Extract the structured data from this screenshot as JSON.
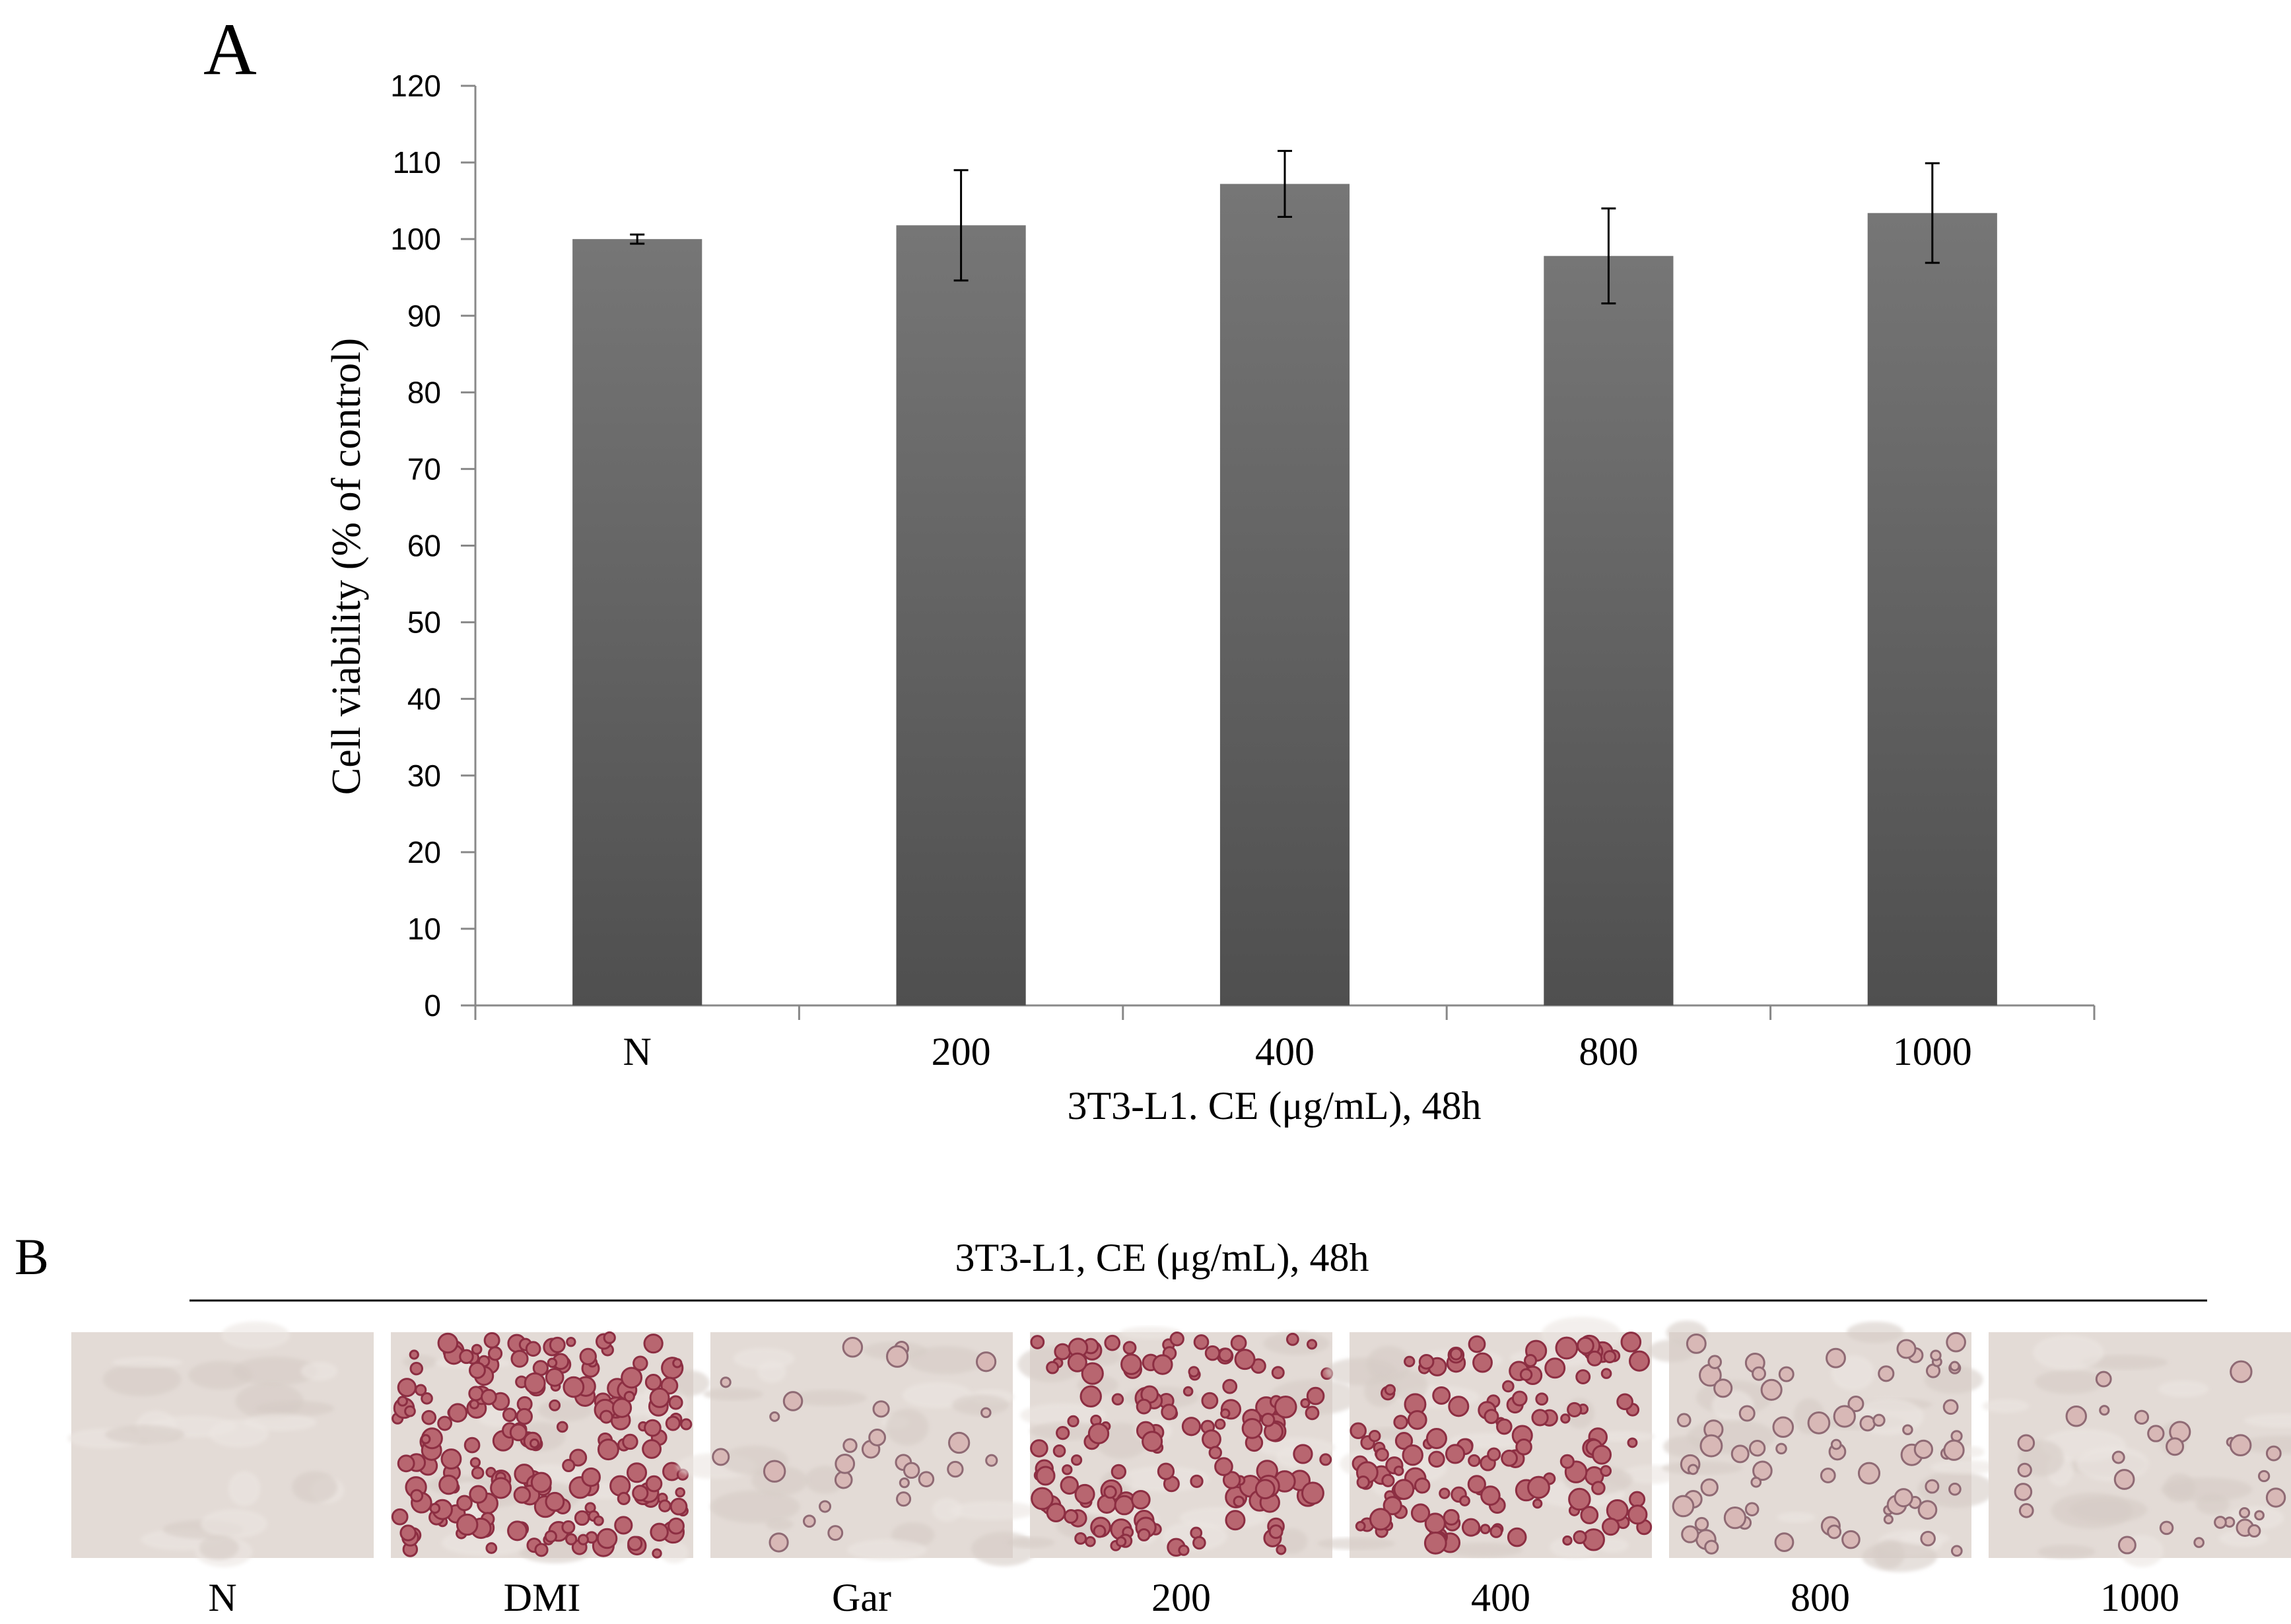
{
  "panel_a_label": "A",
  "panel_b_label": "B",
  "chart_data": {
    "type": "bar",
    "title": "",
    "xlabel": "3T3-L1. CE (μg/mL), 48h",
    "ylabel": "Cell viability (% of control)",
    "categories": [
      "N",
      "200",
      "400",
      "800",
      "1000"
    ],
    "values": [
      100,
      101.8,
      107.2,
      97.8,
      103.4
    ],
    "errors": [
      0.6,
      7.2,
      4.3,
      6.2,
      6.5
    ],
    "ylim": [
      0,
      120
    ],
    "yticks": [
      0,
      10,
      20,
      30,
      40,
      50,
      60,
      70,
      80,
      90,
      100,
      110,
      120
    ],
    "grid": false,
    "bar_color": "#616161"
  },
  "panel_b": {
    "title": "3T3-L1, CE (μg/mL), 48h",
    "images": [
      {
        "label": "N",
        "stain": "none"
      },
      {
        "label": "DMI",
        "stain": "heavy"
      },
      {
        "label": "Gar",
        "stain": "light"
      },
      {
        "label": "200",
        "stain": "strong"
      },
      {
        "label": "400",
        "stain": "strong"
      },
      {
        "label": "800",
        "stain": "moderate"
      },
      {
        "label": "1000",
        "stain": "light"
      }
    ]
  }
}
